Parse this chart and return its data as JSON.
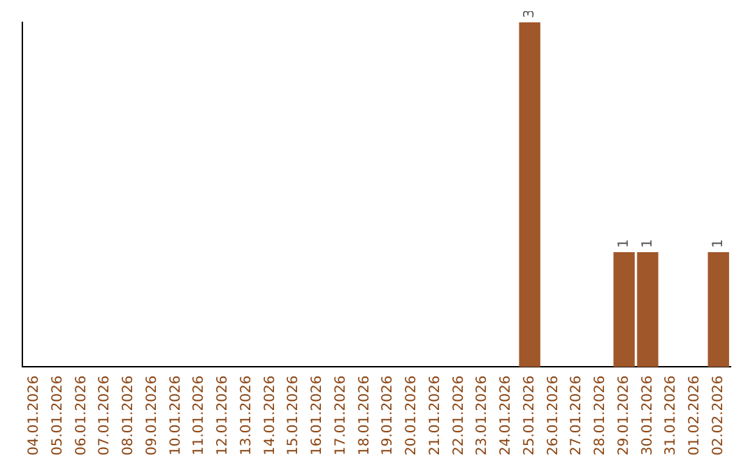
{
  "chart_data": {
    "type": "bar",
    "categories": [
      "04.01.2026",
      "05.01.2026",
      "06.01.2026",
      "07.01.2026",
      "08.01.2026",
      "09.01.2026",
      "10.01.2026",
      "11.01.2026",
      "12.01.2026",
      "13.01.2026",
      "14.01.2026",
      "15.01.2026",
      "16.01.2026",
      "17.01.2026",
      "18.01.2026",
      "19.01.2026",
      "20.01.2026",
      "21.01.2026",
      "22.01.2026",
      "23.01.2026",
      "24.01.2026",
      "25.01.2026",
      "26.01.2026",
      "27.01.2026",
      "28.01.2026",
      "29.01.2026",
      "30.01.2026",
      "31.01.2026",
      "01.02.2026",
      "02.02.2026"
    ],
    "values": [
      null,
      null,
      null,
      null,
      null,
      null,
      null,
      null,
      null,
      null,
      null,
      null,
      null,
      null,
      null,
      null,
      null,
      null,
      null,
      null,
      null,
      3,
      null,
      null,
      null,
      1,
      1,
      null,
      null,
      1
    ],
    "value_labels": [
      null,
      null,
      null,
      null,
      null,
      null,
      null,
      null,
      null,
      null,
      null,
      null,
      null,
      null,
      null,
      null,
      null,
      null,
      null,
      null,
      null,
      "3",
      null,
      null,
      null,
      "1",
      "1",
      null,
      null,
      "1"
    ],
    "color": "#a0572a",
    "grid": false,
    "legend": false,
    "tick_labels": "x"
  }
}
